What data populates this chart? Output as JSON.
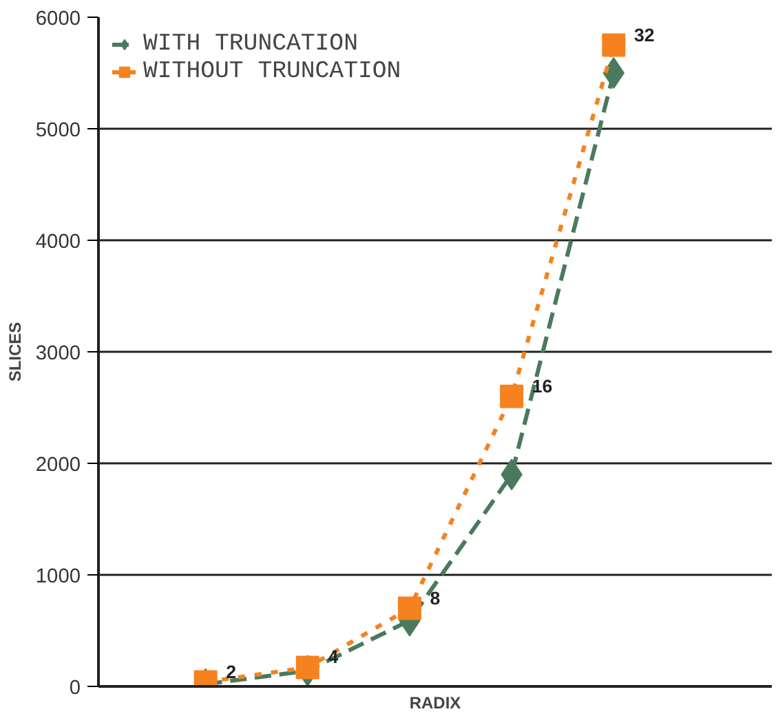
{
  "chart_data": {
    "type": "line",
    "xlabel": "RADIX",
    "ylabel": "SLICES",
    "categories": [
      "2",
      "4",
      "8",
      "16",
      "32"
    ],
    "series": [
      {
        "name": "WITH TRUNCATION",
        "color": "#4a7a5e",
        "values": [
          20,
          140,
          590,
          1900,
          5500
        ],
        "marker": "diamond",
        "line_style": "dashed"
      },
      {
        "name": "WITHOUT TRUNCATION",
        "color": "#f5821f",
        "values": [
          40,
          170,
          700,
          2600,
          5750
        ],
        "marker": "square",
        "line_style": "dotted"
      }
    ],
    "ylim": [
      0,
      6000
    ],
    "yticks": [
      0,
      1000,
      2000,
      3000,
      4000,
      5000,
      6000
    ],
    "grid": "y",
    "legend": "top left",
    "tick_labels": "y"
  }
}
